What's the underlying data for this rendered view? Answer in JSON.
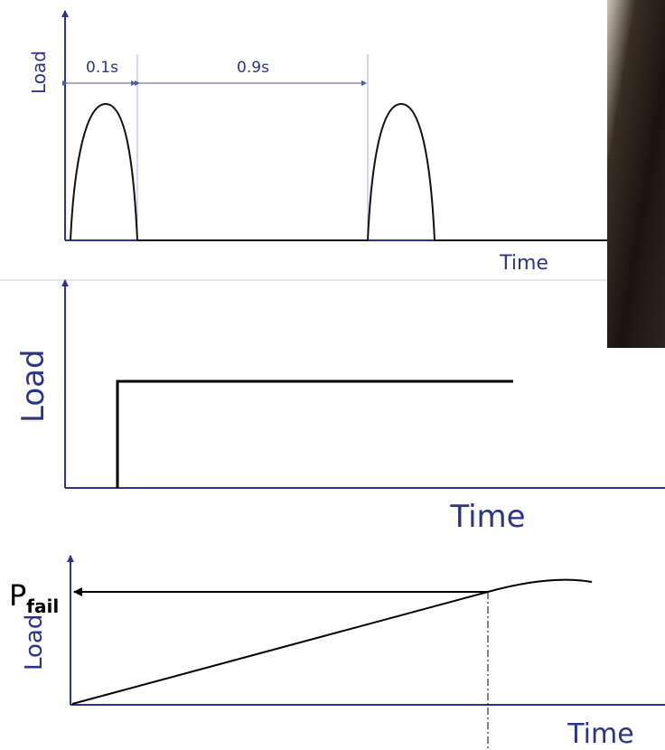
{
  "panels": [
    {
      "y_label": "Load",
      "x_label": "Time",
      "intervals": [
        "0.1s",
        "0.9s"
      ]
    },
    {
      "y_label": "Load",
      "x_label": "Time"
    },
    {
      "y_label": "Load",
      "x_label": "Time",
      "marker": {
        "symbol": "P",
        "subscript": "fail"
      }
    }
  ]
}
